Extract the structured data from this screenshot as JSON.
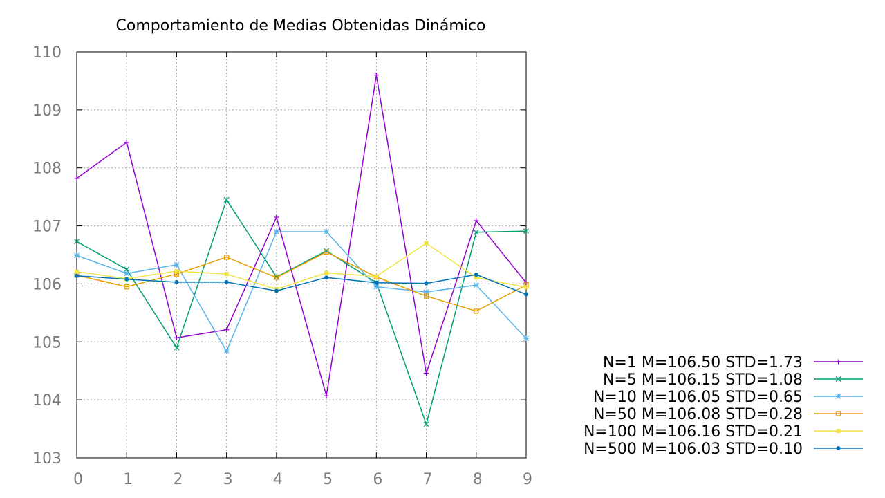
{
  "chart_data": {
    "type": "line",
    "title": "Comportamiento de Medias Obtenidas Dinámico",
    "xlabel": "",
    "ylabel": "",
    "x": [
      0,
      1,
      2,
      3,
      4,
      5,
      6,
      7,
      8,
      9
    ],
    "x_tick_labels": [
      "0",
      "1",
      "2",
      "3",
      "4",
      "5",
      "6",
      "7",
      "8",
      "9"
    ],
    "xlim": [
      0,
      9
    ],
    "ylim": [
      103,
      110
    ],
    "y_ticks": [
      103,
      104,
      105,
      106,
      107,
      108,
      109,
      110
    ],
    "y_tick_labels": [
      "103",
      "104",
      "105",
      "106",
      "107",
      "108",
      "109",
      "110"
    ],
    "grid": true,
    "legend_position": "bottom-right outside",
    "series": [
      {
        "name": "N=1 M=106.50 STD=1.73",
        "color": "#9400d3",
        "marker": "plus",
        "values": [
          107.82,
          108.44,
          105.07,
          105.21,
          107.15,
          104.07,
          109.6,
          104.46,
          107.09,
          106.02
        ]
      },
      {
        "name": "N=5 M=106.15 STD=1.08",
        "color": "#009e73",
        "marker": "cross",
        "values": [
          106.73,
          106.25,
          104.9,
          107.45,
          106.12,
          106.57,
          106.02,
          103.58,
          106.89,
          106.91
        ]
      },
      {
        "name": "N=10 M=106.05 STD=0.65",
        "color": "#56b4e9",
        "marker": "star",
        "values": [
          106.49,
          106.18,
          106.33,
          104.84,
          106.9,
          106.9,
          105.95,
          105.86,
          105.98,
          105.06
        ]
      },
      {
        "name": "N=50 M=106.08 STD=0.28",
        "color": "#e69f00",
        "marker": "square-open",
        "values": [
          106.15,
          105.95,
          106.17,
          106.46,
          106.11,
          106.55,
          106.12,
          105.79,
          105.53,
          105.98
        ]
      },
      {
        "name": "N=100 M=106.16 STD=0.21",
        "color": "#f0e442",
        "marker": "square-filled",
        "values": [
          106.21,
          106.09,
          106.22,
          106.17,
          105.91,
          106.19,
          106.13,
          106.7,
          106.11,
          105.94
        ]
      },
      {
        "name": "N=500 M=106.03 STD=0.10",
        "color": "#0072b2",
        "marker": "circle-filled",
        "values": [
          106.14,
          106.08,
          106.03,
          106.03,
          105.88,
          106.11,
          106.02,
          106.01,
          106.16,
          105.82
        ]
      }
    ]
  }
}
